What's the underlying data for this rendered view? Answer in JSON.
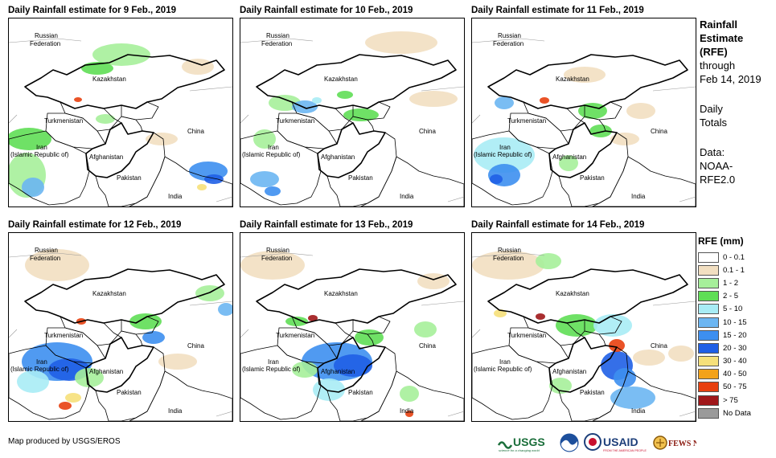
{
  "panels": [
    {
      "title": "Daily Rainfall estimate for 9 Feb., 2019"
    },
    {
      "title": "Daily Rainfall estimate for 10 Feb., 2019"
    },
    {
      "title": "Daily Rainfall estimate for 11 Feb., 2019"
    },
    {
      "title": "Daily Rainfall estimate for 12 Feb., 2019"
    },
    {
      "title": "Daily Rainfall estimate for 13 Feb., 2019"
    },
    {
      "title": "Daily Rainfall estimate for 14 Feb., 2019"
    }
  ],
  "map_labels": {
    "russia_1": "Russian",
    "russia_2": "Federation",
    "kazakhstan": "Kazakhstan",
    "turkmenistan": "Turkmenistan",
    "iran_1": "Iran",
    "iran_2": "(Islamic Republic of)",
    "afghanistan": "Afghanistan",
    "pakistan": "Pakistan",
    "china": "China",
    "india": "India"
  },
  "sidebar": {
    "title_1": "Rainfall",
    "title_2": "Estimate",
    "title_3": "(RFE)",
    "through": "through",
    "date": "Feb 14, 2019",
    "daily": "Daily",
    "totals": "Totals",
    "data_label": "Data:",
    "source_1": "NOAA-",
    "source_2": "RFE2.0"
  },
  "legend": {
    "title": "RFE (mm)",
    "items": [
      {
        "label": "0 - 0.1",
        "color": "#ffffff"
      },
      {
        "label": "0.1 - 1",
        "color": "#f2dfc1"
      },
      {
        "label": "1 - 2",
        "color": "#a6ef9a"
      },
      {
        "label": "2 - 5",
        "color": "#5fde55"
      },
      {
        "label": "5 - 10",
        "color": "#a8ecf5"
      },
      {
        "label": "10 - 15",
        "color": "#6cb6f2"
      },
      {
        "label": "15 - 20",
        "color": "#3d8ff0"
      },
      {
        "label": "20 - 30",
        "color": "#1f5fe6"
      },
      {
        "label": "30 - 40",
        "color": "#f6e07a"
      },
      {
        "label": "40 - 50",
        "color": "#f3a21a"
      },
      {
        "label": "50 - 75",
        "color": "#e8400f"
      },
      {
        "label": "> 75",
        "color": "#a0171a"
      },
      {
        "label": "No Data",
        "color": "#9a9a9a"
      }
    ]
  },
  "footer": {
    "credit": "Map produced by USGS/EROS"
  },
  "logos": {
    "usgs": "USGS",
    "usgs_tag": "science for a changing world",
    "usaid": "USAID",
    "usaid_tag": "FROM THE AMERICAN PEOPLE",
    "fews": "FEWS NET"
  }
}
